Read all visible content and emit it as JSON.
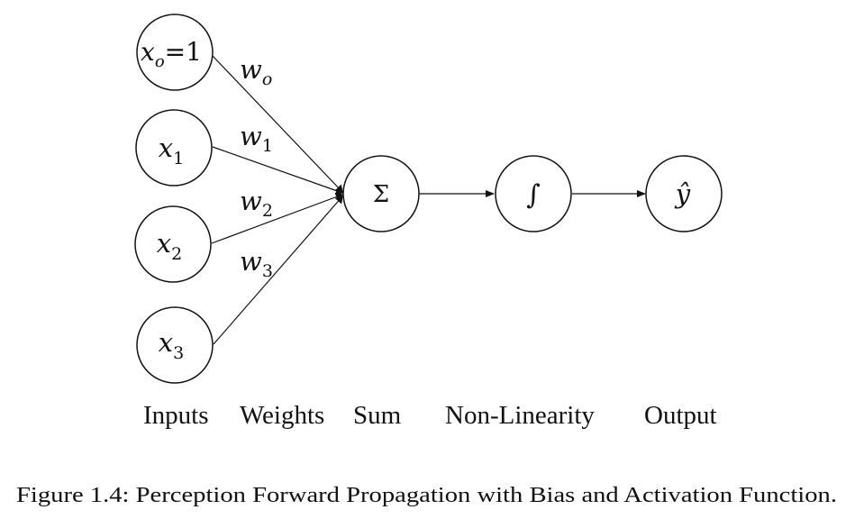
{
  "diagram": {
    "inputs": [
      {
        "symbol": "x",
        "subscript": "o",
        "suffix": "=1"
      },
      {
        "symbol": "x",
        "subscript": "1",
        "suffix": ""
      },
      {
        "symbol": "x",
        "subscript": "2",
        "suffix": ""
      },
      {
        "symbol": "x",
        "subscript": "3",
        "suffix": ""
      }
    ],
    "weights": [
      {
        "symbol": "w",
        "subscript": "o"
      },
      {
        "symbol": "w",
        "subscript": "1"
      },
      {
        "symbol": "w",
        "subscript": "2"
      },
      {
        "symbol": "w",
        "subscript": "3"
      }
    ],
    "sum_symbol": "Σ",
    "nonlinearity_symbol": "∫",
    "output_symbol": "ŷ",
    "stage_labels": {
      "inputs": "Inputs",
      "weights": "Weights",
      "sum": "Sum",
      "nonlinearity": "Non-Linearity",
      "output": "Output"
    }
  },
  "caption": "Figure 1.4: Perception Forward Propagation with Bias and Activation Function."
}
